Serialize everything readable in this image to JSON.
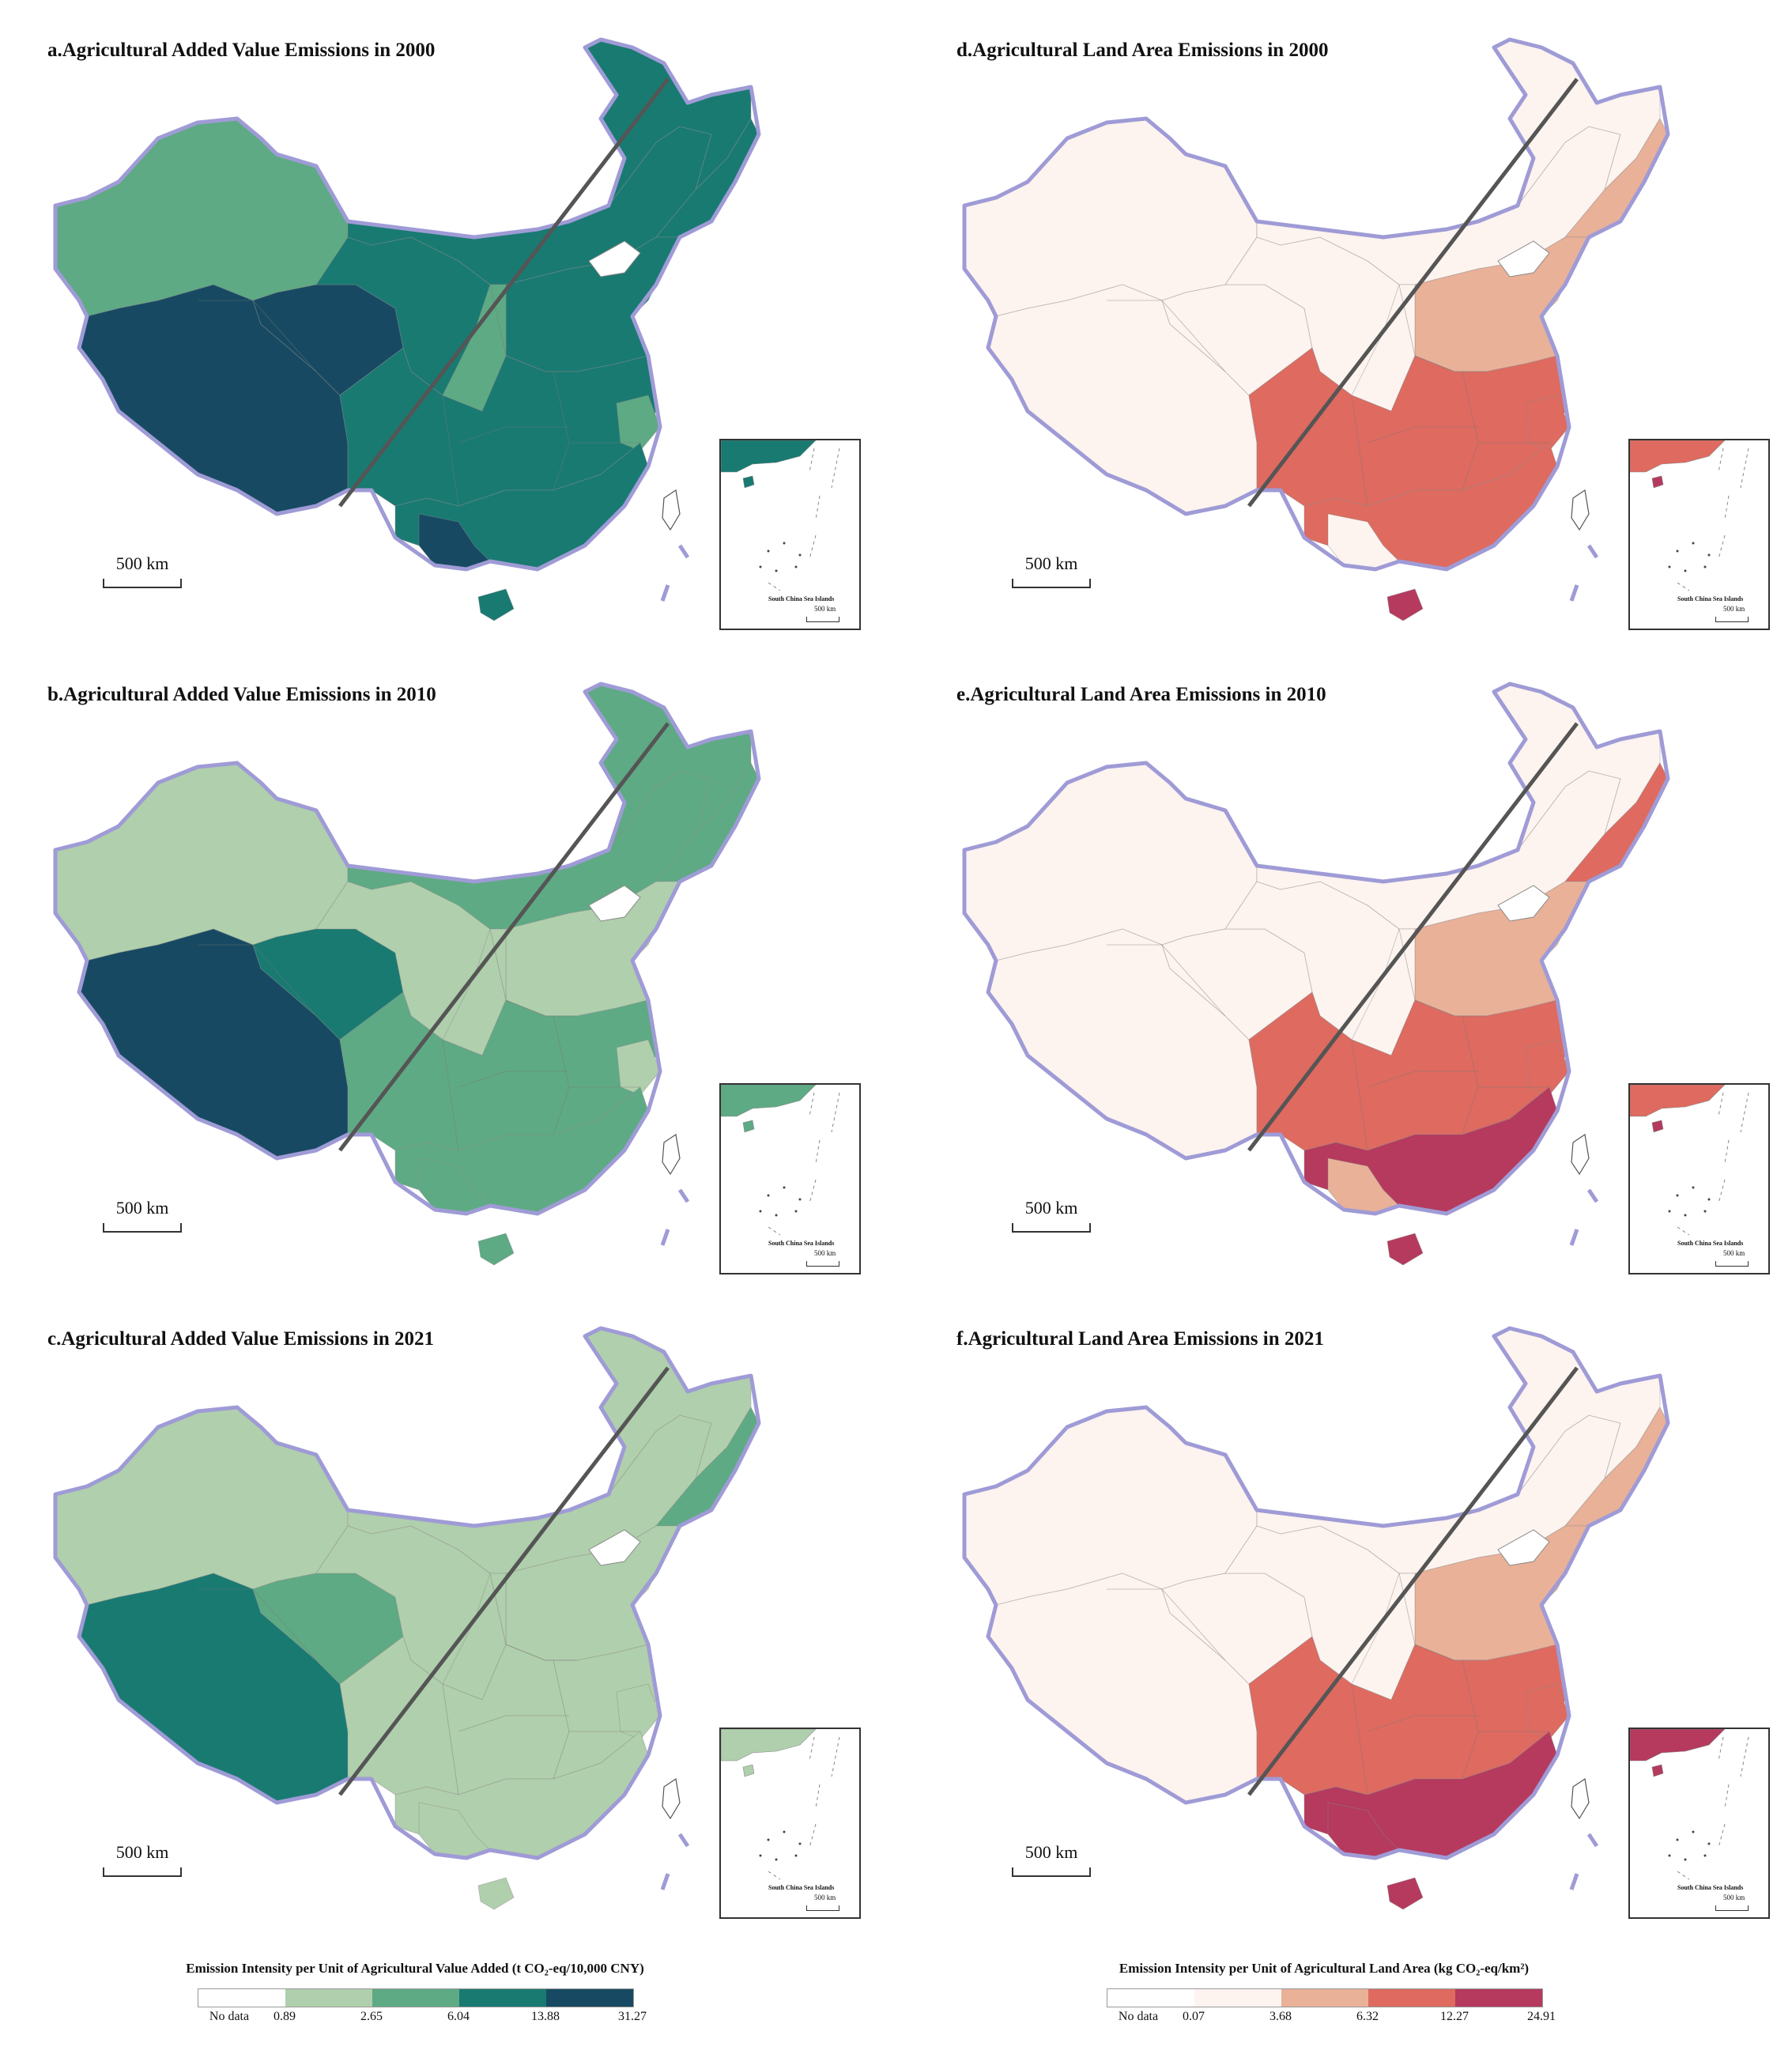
{
  "colors": {
    "border": "#9f9bd6",
    "line": "#555555",
    "green": [
      "#ffffff",
      "#b0cfac",
      "#5eaa84",
      "#197a72",
      "#174a62"
    ],
    "red": [
      "#ffffff",
      "#fdf3ef",
      "#e9b198",
      "#de6a60",
      "#b53a5e"
    ]
  },
  "panels": [
    {
      "title": "a.Agricultural Added Value Emissions in 2000",
      "scale_label": "500 km",
      "inset_label": "South China Sea Islands",
      "inset_scale": "500 km",
      "palette": "green",
      "classes": {
        "xinjiang": 2,
        "qinghai": 4,
        "tibet": 4,
        "gansu": 3,
        "innermongolia": 3,
        "heilongjiang": 3,
        "northeast": 3,
        "north": 3,
        "central": 3,
        "shaanxi": 2,
        "zhejiang": 2,
        "south": 3,
        "guangxi": 4,
        "hainan": 3,
        "inset": 3
      }
    },
    {
      "title": "b.Agricultural Added Value Emissions in 2010",
      "scale_label": "500 km",
      "inset_label": "South China Sea Islands",
      "inset_scale": "500 km",
      "palette": "green",
      "classes": {
        "xinjiang": 1,
        "qinghai": 3,
        "tibet": 4,
        "gansu": 1,
        "innermongolia": 2,
        "heilongjiang": 2,
        "northeast": 2,
        "north": 1,
        "central": 2,
        "shaanxi": 1,
        "zhejiang": 1,
        "south": 2,
        "guangxi": 2,
        "hainan": 2,
        "inset": 2
      }
    },
    {
      "title": "c.Agricultural Added Value Emissions in 2021",
      "scale_label": "500 km",
      "inset_label": "South China Sea Islands",
      "inset_scale": "500 km",
      "palette": "green",
      "classes": {
        "xinjiang": 1,
        "qinghai": 2,
        "tibet": 3,
        "gansu": 1,
        "innermongolia": 1,
        "heilongjiang": 1,
        "northeast": 2,
        "north": 1,
        "central": 1,
        "shaanxi": 1,
        "zhejiang": 1,
        "south": 1,
        "guangxi": 1,
        "hainan": 1,
        "inset": 1
      }
    },
    {
      "title": "d.Agricultural Land Area Emissions in 2000",
      "scale_label": "500 km",
      "inset_label": "South China Sea Islands",
      "inset_scale": "500 km",
      "palette": "red",
      "classes": {
        "xinjiang": 1,
        "qinghai": 1,
        "tibet": 1,
        "gansu": 1,
        "innermongolia": 1,
        "heilongjiang": 1,
        "northeast": 2,
        "north": 2,
        "central": 3,
        "shaanxi": 1,
        "zhejiang": 3,
        "south": 3,
        "guangxi": 1,
        "hainan": 4,
        "inset": 3
      }
    },
    {
      "title": "e.Agricultural Land Area Emissions in 2010",
      "scale_label": "500 km",
      "inset_label": "South China Sea Islands",
      "inset_scale": "500 km",
      "palette": "red",
      "classes": {
        "xinjiang": 1,
        "qinghai": 1,
        "tibet": 1,
        "gansu": 1,
        "innermongolia": 1,
        "heilongjiang": 1,
        "northeast": 3,
        "north": 2,
        "central": 3,
        "shaanxi": 1,
        "zhejiang": 3,
        "south": 4,
        "guangxi": 2,
        "hainan": 4,
        "inset": 3
      }
    },
    {
      "title": "f.Agricultural Land Area Emissions in 2021",
      "scale_label": "500 km",
      "inset_label": "South China Sea Islands",
      "inset_scale": "500 km",
      "palette": "red",
      "classes": {
        "xinjiang": 1,
        "qinghai": 1,
        "tibet": 1,
        "gansu": 1,
        "innermongolia": 1,
        "heilongjiang": 1,
        "northeast": 2,
        "north": 2,
        "central": 3,
        "shaanxi": 1,
        "zhejiang": 3,
        "south": 4,
        "guangxi": 4,
        "hainan": 4,
        "inset": 4
      }
    }
  ],
  "legends": [
    {
      "title": "Emission Intensity per Unit of Agricultural Value Added (t CO₂-eq/10,000 CNY)",
      "palette": "green",
      "ticks": [
        "No data",
        "0.89",
        "2.65",
        "6.04",
        "13.88",
        "31.27"
      ]
    },
    {
      "title": "Emission Intensity per Unit of Agricultural Land Area (kg CO₂-eq/km²)",
      "palette": "red",
      "ticks": [
        "No data",
        "0.07",
        "3.68",
        "6.32",
        "12.27",
        "24.91"
      ]
    }
  ]
}
